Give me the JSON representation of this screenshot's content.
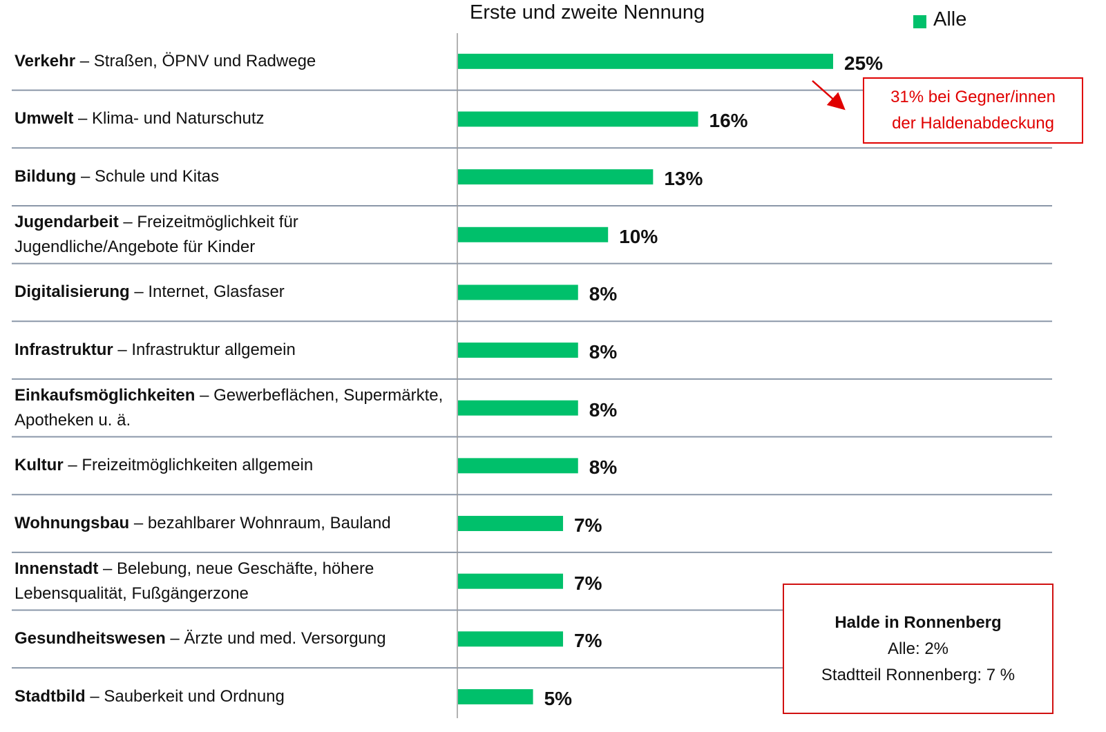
{
  "chart_data": {
    "type": "bar",
    "orientation": "horizontal",
    "title": "Erste und zweite Nennung",
    "categories": [
      "Verkehr",
      "Umwelt",
      "Bildung",
      "Jugendarbeit",
      "Digitalisierung",
      "Infrastruktur",
      "Einkaufsmöglichkeiten",
      "Kultur",
      "Wohnungsbau",
      "Innenstadt",
      "Gesundheitswesen",
      "Stadtbild"
    ],
    "category_details": [
      "– Straßen, ÖPNV und Radwege",
      "– Klima- und Naturschutz",
      "– Schule und Kitas",
      "– Freizeitmöglichkeit für Jugendliche/Angebote für Kinder",
      "– Internet, Glasfaser",
      " – Infrastruktur allgemein",
      "– Gewerbeflächen, Supermärkte, Apotheken u. ä.",
      "– Freizeitmöglichkeiten allgemein",
      "– bezahlbarer Wohnraum, Bauland",
      "– Belebung, neue Geschäfte, höhere Lebensqualität, Fußgängerzone",
      "– Ärzte und med. Versorgung",
      "– Sauberkeit und Ordnung"
    ],
    "series": [
      {
        "name": "Alle",
        "color": "#00c06b",
        "values": [
          25,
          16,
          13,
          10,
          8,
          8,
          8,
          8,
          7,
          7,
          7,
          5
        ],
        "value_labels": [
          "25%",
          "16%",
          "13%",
          "10%",
          "8%",
          "8%",
          "8%",
          "8%",
          "7%",
          "7%",
          "7%",
          "5%"
        ]
      }
    ],
    "annotations": [
      {
        "lines": [
          "31% bei Gegner/innen",
          "der Haldenabdeckung"
        ]
      },
      {
        "lines": [
          "Halde in Ronnenberg",
          "Alle: 2%",
          "Stadtteil Ronnenberg: 7 %"
        ]
      }
    ]
  }
}
